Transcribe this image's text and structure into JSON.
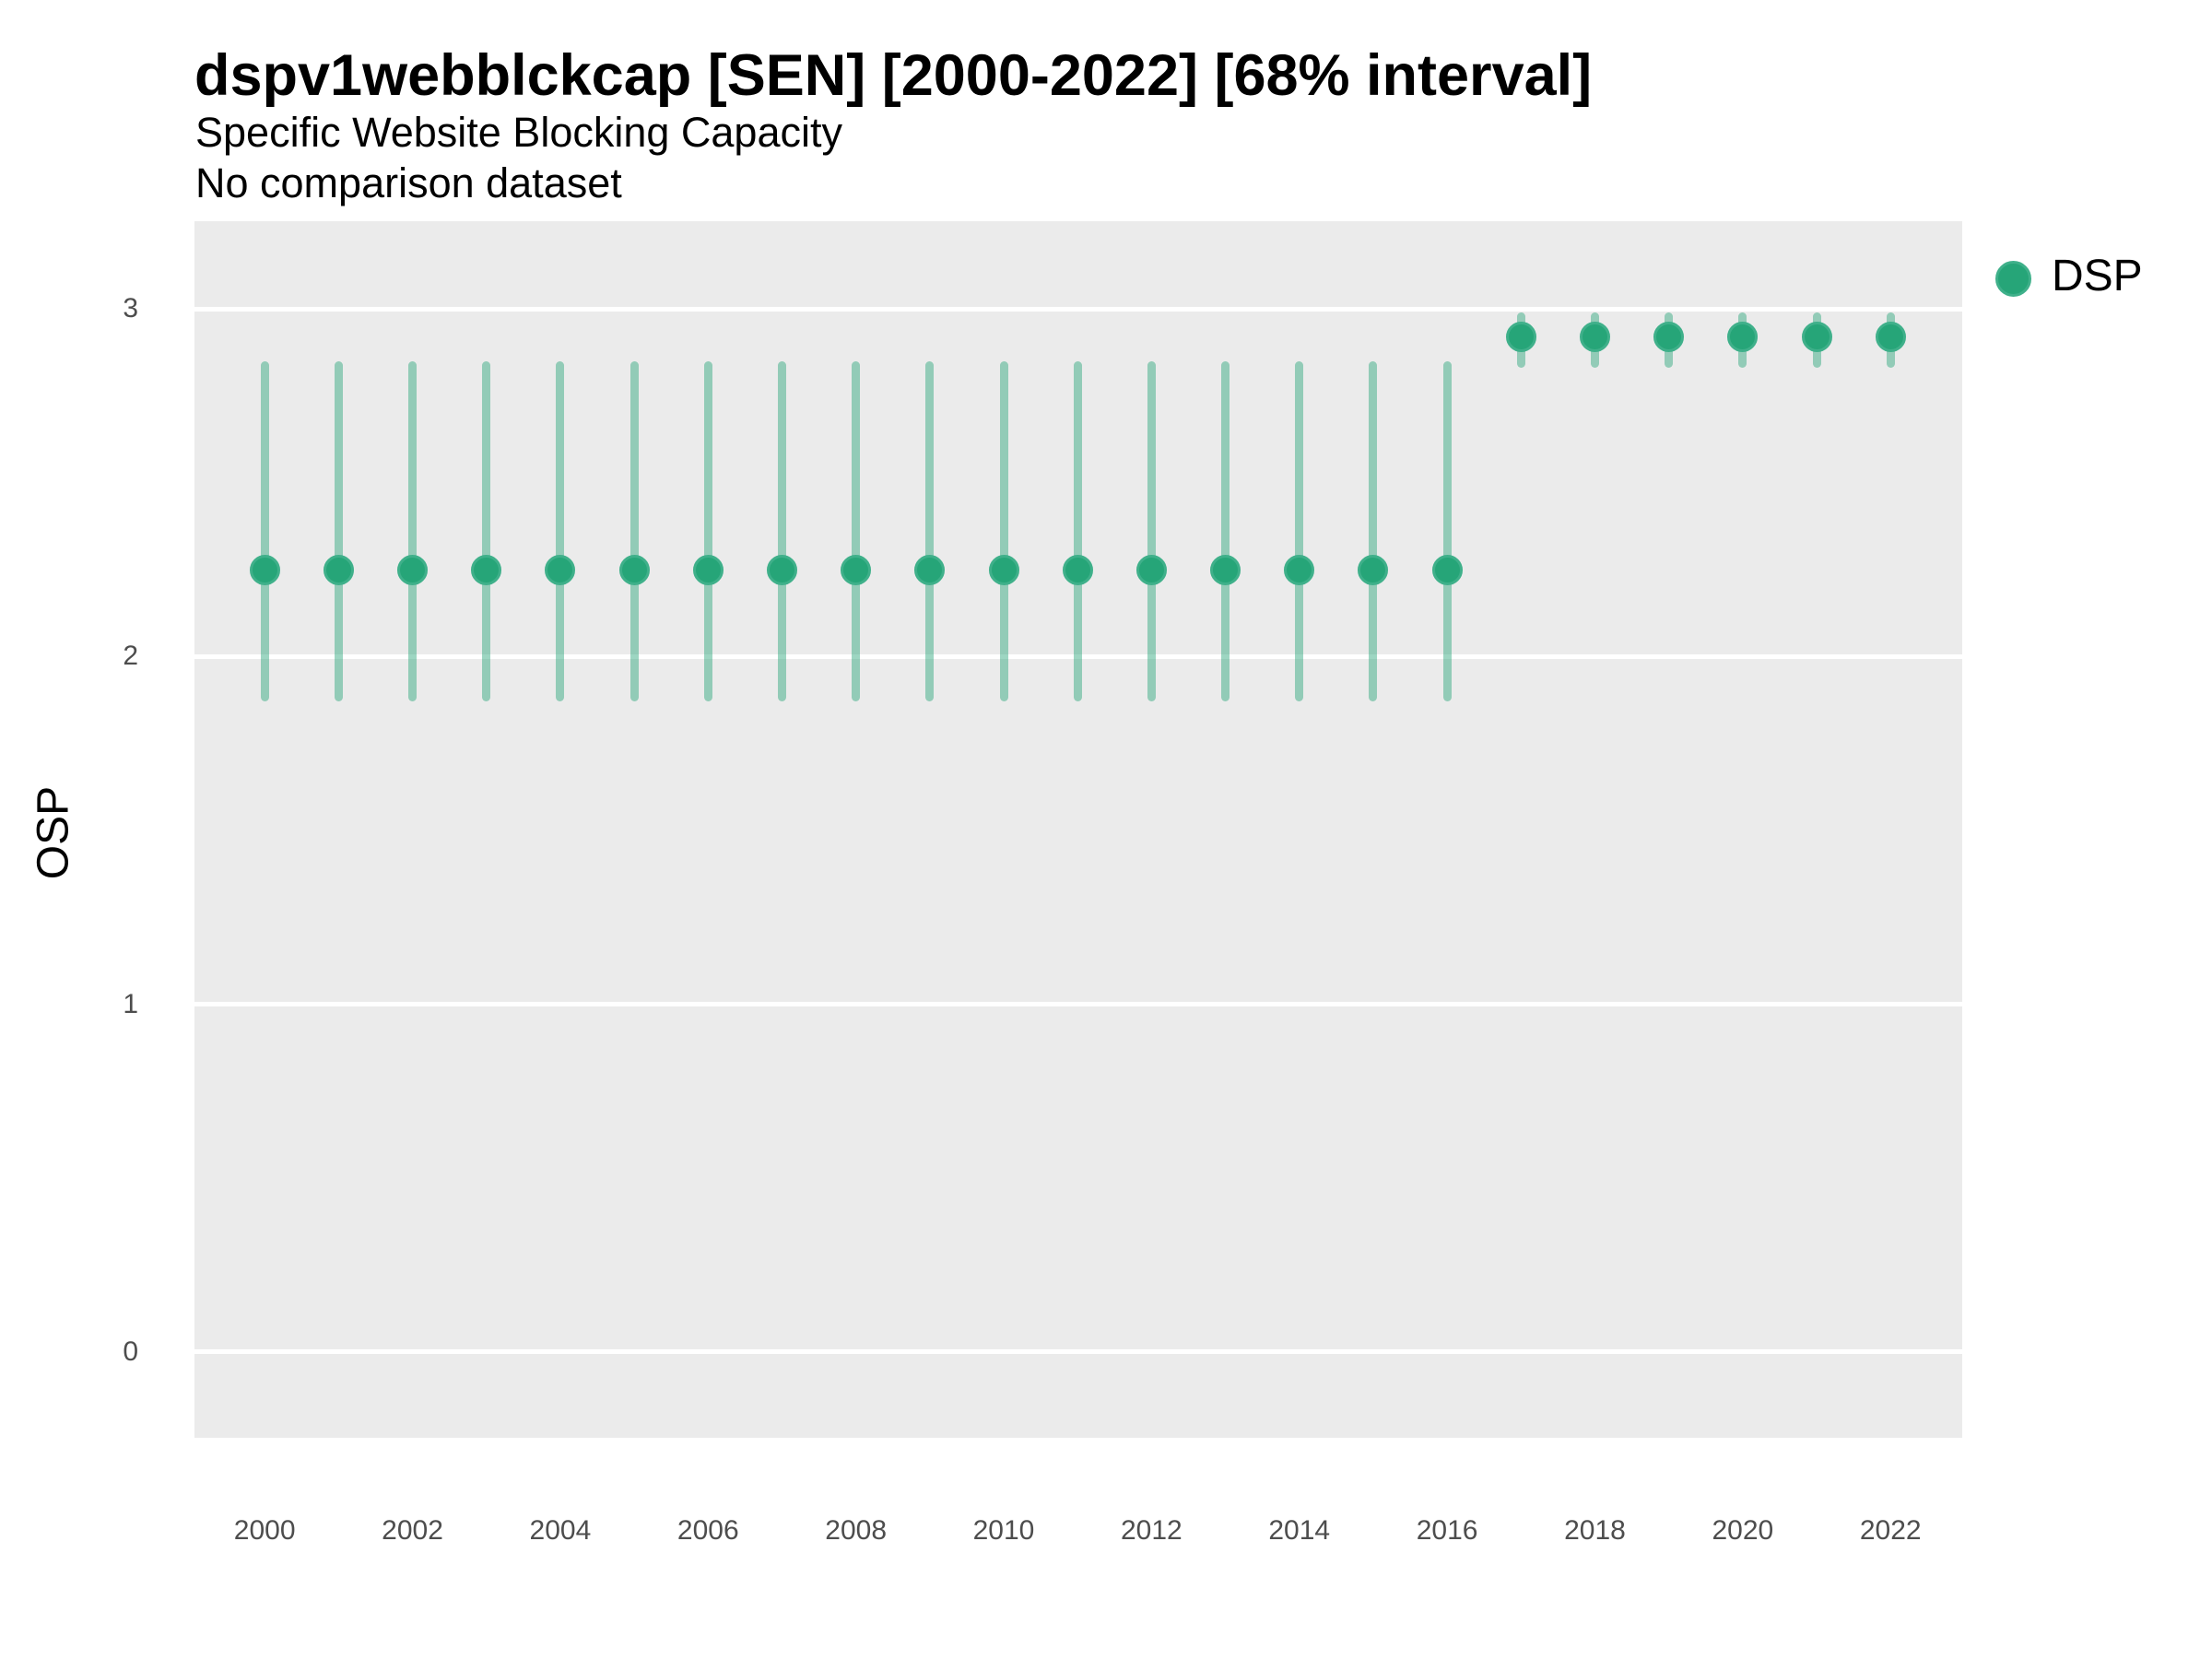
{
  "chart_data": {
    "type": "scatter",
    "subtype": "pointrange",
    "title": "dspv1webblckcap [SEN] [2000-2022] [68% interval]",
    "subtitle": "Specific Website Blocking Capacity",
    "comparison_note": "No comparison dataset",
    "xlabel": "",
    "ylabel": "OSP",
    "interval_level": "68%",
    "legend": {
      "position": "right",
      "entries": [
        {
          "label": "DSP"
        }
      ]
    },
    "x": [
      2000,
      2001,
      2002,
      2003,
      2004,
      2005,
      2006,
      2007,
      2008,
      2009,
      2010,
      2011,
      2012,
      2013,
      2014,
      2015,
      2016,
      2017,
      2018,
      2019,
      2020,
      2021,
      2022
    ],
    "series": [
      {
        "name": "DSP",
        "estimate": [
          2.25,
          2.25,
          2.25,
          2.25,
          2.25,
          2.25,
          2.25,
          2.25,
          2.25,
          2.25,
          2.25,
          2.25,
          2.25,
          2.25,
          2.25,
          2.25,
          2.25,
          2.92,
          2.92,
          2.92,
          2.92,
          2.92,
          2.92
        ],
        "lower_68": [
          1.87,
          1.87,
          1.87,
          1.87,
          1.87,
          1.87,
          1.87,
          1.87,
          1.87,
          1.87,
          1.87,
          1.87,
          1.87,
          1.87,
          1.87,
          1.87,
          1.87,
          2.83,
          2.83,
          2.83,
          2.83,
          2.83,
          2.83
        ],
        "upper_68": [
          2.85,
          2.85,
          2.85,
          2.85,
          2.85,
          2.85,
          2.85,
          2.85,
          2.85,
          2.85,
          2.85,
          2.85,
          2.85,
          2.85,
          2.85,
          2.85,
          2.85,
          2.99,
          2.99,
          2.99,
          2.99,
          2.99,
          2.99
        ]
      }
    ],
    "xticks": [
      2000,
      2002,
      2004,
      2006,
      2008,
      2010,
      2012,
      2014,
      2016,
      2018,
      2020,
      2022
    ],
    "yticks": [
      0,
      1,
      2,
      3
    ],
    "xlim": [
      1999.05,
      2022.97
    ],
    "ylim": [
      -0.25,
      3.25
    ],
    "grid": "horizontal major gridlines only, white on grey panel",
    "legend_label": "DSP"
  },
  "colors": {
    "plot_background": "#ebebeb",
    "gridline": "#ffffff",
    "point_fill": "#26a578",
    "point_ring": "#3fb08a",
    "interval": "rgba(38,165,120,0.45)",
    "tick_label": "#4d4d4d",
    "text": "#000000"
  }
}
